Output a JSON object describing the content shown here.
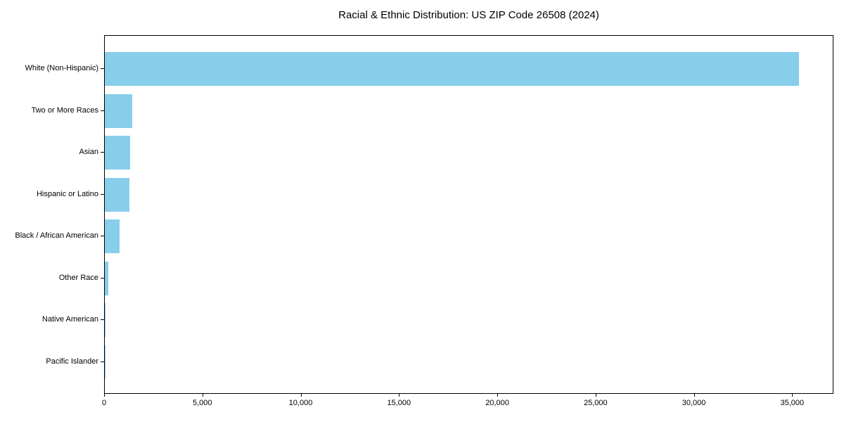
{
  "chart_data": {
    "type": "bar",
    "orientation": "horizontal",
    "title": "Racial & Ethnic Distribution: US ZIP Code 26508 (2024)",
    "xlabel": "",
    "ylabel": "",
    "categories": [
      "White (Non-Hispanic)",
      "Two or More Races",
      "Asian",
      "Hispanic or Latino",
      "Black / African American",
      "Other Race",
      "Native American",
      "Pacific Islander"
    ],
    "values": [
      35300,
      1390,
      1290,
      1260,
      750,
      170,
      25,
      10
    ],
    "bar_color": "#87CEEB",
    "text_color": "#000000",
    "xlim": [
      0,
      37100
    ],
    "x_ticks": [
      {
        "value": 0,
        "label": "0"
      },
      {
        "value": 5000,
        "label": "5,000"
      },
      {
        "value": 10000,
        "label": "10,000"
      },
      {
        "value": 15000,
        "label": "15,000"
      },
      {
        "value": 20000,
        "label": "20,000"
      },
      {
        "value": 25000,
        "label": "25,000"
      },
      {
        "value": 30000,
        "label": "30,000"
      },
      {
        "value": 35000,
        "label": "35,000"
      }
    ],
    "grid": false,
    "legend": null,
    "sort_order": "descending"
  }
}
